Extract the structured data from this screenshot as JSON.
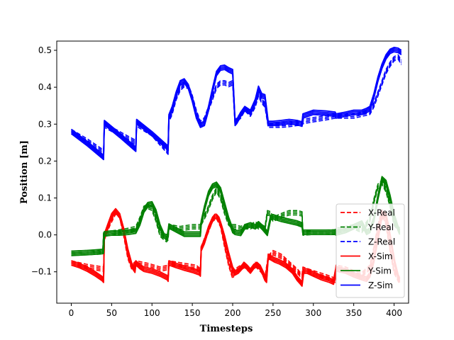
{
  "chart_data": {
    "type": "line",
    "xlabel": "Timesteps",
    "ylabel": "Position [m]",
    "xlim": [
      -18,
      418
    ],
    "ylim": [
      -0.185,
      0.525
    ],
    "xticks": [
      0,
      50,
      100,
      150,
      200,
      250,
      300,
      350,
      400
    ],
    "yticks": [
      -0.1,
      0.0,
      0.1,
      0.2,
      0.3,
      0.4,
      0.5
    ],
    "xtick_labels": [
      "0",
      "50",
      "100",
      "150",
      "200",
      "250",
      "300",
      "350",
      "400"
    ],
    "ytick_labels": [
      "−0.1",
      "0.0",
      "0.1",
      "0.2",
      "0.3",
      "0.4",
      "0.5"
    ],
    "grid": false,
    "legend_position": "lower-right",
    "legend": [
      {
        "label": "X-Real",
        "color": "#ff0000",
        "dash": true
      },
      {
        "label": "Y-Real",
        "color": "#008000",
        "dash": true
      },
      {
        "label": "Z-Real",
        "color": "#0000ff",
        "dash": true
      },
      {
        "label": "X-Sim",
        "color": "#ff0000",
        "dash": false
      },
      {
        "label": "Y-Sim",
        "color": "#008000",
        "dash": false
      },
      {
        "label": "Z-Sim",
        "color": "#0000ff",
        "dash": false
      }
    ],
    "series": [
      {
        "key": "x_real",
        "color": "#ff0000",
        "dash": true,
        "x": [
          0,
          20,
          40,
          41,
          48,
          55,
          60,
          65,
          70,
          75,
          80,
          95,
          100,
          110,
          120,
          121,
          140,
          155,
          160,
          161,
          168,
          175,
          180,
          185,
          190,
          195,
          200,
          203,
          210,
          215,
          222,
          228,
          232,
          236,
          240,
          244,
          248,
          250,
          260,
          270,
          280,
          286,
          287,
          300,
          315,
          327,
          328,
          340,
          350,
          360,
          370,
          375,
          380,
          385,
          390,
          395,
          400,
          407
        ],
        "y": [
          -0.078,
          -0.088,
          -0.095,
          -0.01,
          0.03,
          0.06,
          0.05,
          0.0,
          -0.06,
          -0.09,
          -0.078,
          -0.085,
          -0.088,
          -0.095,
          -0.09,
          -0.078,
          -0.085,
          -0.09,
          -0.1,
          -0.04,
          0.0,
          0.04,
          0.048,
          0.025,
          -0.03,
          -0.08,
          -0.115,
          -0.1,
          -0.09,
          -0.085,
          -0.1,
          -0.082,
          -0.09,
          -0.1,
          -0.12,
          -0.065,
          -0.055,
          -0.05,
          -0.06,
          -0.08,
          -0.1,
          -0.115,
          -0.095,
          -0.105,
          -0.115,
          -0.125,
          -0.09,
          -0.095,
          -0.105,
          -0.11,
          -0.09,
          -0.04,
          0.02,
          0.06,
          0.03,
          -0.04,
          -0.1,
          -0.13
        ]
      },
      {
        "key": "y_real",
        "color": "#008000",
        "dash": true,
        "x": [
          0,
          20,
          39,
          40,
          50,
          60,
          70,
          80,
          85,
          90,
          95,
          100,
          105,
          110,
          115,
          118,
          120,
          121,
          135,
          150,
          160,
          161,
          168,
          175,
          180,
          185,
          190,
          195,
          200,
          203,
          210,
          215,
          222,
          228,
          232,
          236,
          240,
          243,
          247,
          250,
          260,
          270,
          280,
          286,
          287,
          300,
          315,
          327,
          328,
          340,
          350,
          360,
          370,
          375,
          380,
          385,
          390,
          395,
          400,
          407
        ],
        "y": [
          -0.052,
          -0.05,
          -0.048,
          0.0,
          0.003,
          0.006,
          0.01,
          0.015,
          0.04,
          0.07,
          0.075,
          0.07,
          0.04,
          0.0,
          -0.01,
          -0.015,
          -0.01,
          0.02,
          0.015,
          0.02,
          0.02,
          0.03,
          0.06,
          0.1,
          0.12,
          0.1,
          0.06,
          0.03,
          0.02,
          0.02,
          0.015,
          0.02,
          0.02,
          0.028,
          0.02,
          0.02,
          0.015,
          0.058,
          0.055,
          0.04,
          0.05,
          0.058,
          0.058,
          0.055,
          0.003,
          0.005,
          0.005,
          0.006,
          0.01,
          0.015,
          0.02,
          0.01,
          0.04,
          0.09,
          0.13,
          0.14,
          0.12,
          0.08,
          0.03,
          0.01
        ]
      },
      {
        "key": "z_real",
        "color": "#0000ff",
        "dash": true,
        "x": [
          0,
          20,
          40,
          41,
          60,
          80,
          81,
          100,
          120,
          121,
          125,
          130,
          135,
          140,
          145,
          150,
          155,
          160,
          165,
          170,
          175,
          180,
          185,
          190,
          195,
          200,
          203,
          205,
          210,
          215,
          222,
          228,
          232,
          236,
          240,
          244,
          247,
          250,
          260,
          270,
          280,
          286,
          287,
          300,
          315,
          327,
          328,
          340,
          350,
          360,
          370,
          375,
          380,
          385,
          390,
          395,
          400,
          405,
          409
        ],
        "y": [
          0.278,
          0.252,
          0.222,
          0.295,
          0.272,
          0.248,
          0.298,
          0.272,
          0.222,
          0.31,
          0.33,
          0.37,
          0.395,
          0.405,
          0.4,
          0.37,
          0.33,
          0.3,
          0.31,
          0.34,
          0.37,
          0.4,
          0.41,
          0.41,
          0.405,
          0.41,
          0.3,
          0.31,
          0.32,
          0.34,
          0.325,
          0.35,
          0.38,
          0.36,
          0.35,
          0.295,
          0.295,
          0.295,
          0.295,
          0.297,
          0.3,
          0.3,
          0.305,
          0.31,
          0.315,
          0.32,
          0.32,
          0.32,
          0.32,
          0.325,
          0.33,
          0.35,
          0.38,
          0.41,
          0.44,
          0.46,
          0.475,
          0.48,
          0.465
        ]
      },
      {
        "key": "x_sim",
        "color": "#ff0000",
        "dash": false,
        "x": [
          0,
          10,
          20,
          30,
          38,
          40,
          41,
          45,
          50,
          55,
          60,
          65,
          70,
          75,
          79,
          80,
          85,
          90,
          100,
          110,
          119,
          120,
          121,
          130,
          140,
          150,
          159,
          160,
          161,
          165,
          170,
          175,
          178,
          180,
          183,
          186,
          190,
          195,
          200,
          203,
          207,
          212,
          214,
          218,
          222,
          226,
          230,
          234,
          238,
          240,
          242,
          244,
          248,
          252,
          258,
          266,
          274,
          280,
          284,
          286,
          288,
          292,
          300,
          310,
          320,
          325,
          328,
          330,
          340,
          350,
          360,
          366,
          370,
          375,
          380,
          384,
          387,
          390,
          393,
          397,
          401,
          405,
          407
        ],
        "y": [
          -0.078,
          -0.085,
          -0.095,
          -0.108,
          -0.12,
          -0.125,
          -0.005,
          0.02,
          0.05,
          0.063,
          0.05,
          0.01,
          -0.045,
          -0.085,
          -0.098,
          -0.078,
          -0.088,
          -0.095,
          -0.1,
          -0.108,
          -0.118,
          -0.122,
          -0.078,
          -0.085,
          -0.092,
          -0.098,
          -0.105,
          -0.108,
          -0.04,
          -0.02,
          0.015,
          0.04,
          0.048,
          0.048,
          0.04,
          0.02,
          -0.01,
          -0.055,
          -0.095,
          -0.105,
          -0.1,
          -0.088,
          -0.082,
          -0.09,
          -0.1,
          -0.088,
          -0.082,
          -0.09,
          -0.108,
          -0.12,
          -0.125,
          -0.06,
          -0.065,
          -0.07,
          -0.075,
          -0.085,
          -0.1,
          -0.12,
          -0.13,
          -0.135,
          -0.1,
          -0.1,
          -0.108,
          -0.118,
          -0.125,
          -0.13,
          -0.095,
          -0.095,
          -0.1,
          -0.11,
          -0.118,
          -0.122,
          -0.11,
          -0.07,
          -0.01,
          0.04,
          0.055,
          0.05,
          0.02,
          -0.03,
          -0.08,
          -0.115,
          -0.125
        ]
      },
      {
        "key": "y_sim",
        "color": "#008000",
        "dash": false,
        "x": [
          0,
          20,
          39,
          40,
          41,
          50,
          60,
          70,
          80,
          85,
          90,
          95,
          100,
          105,
          110,
          115,
          119,
          120,
          121,
          140,
          160,
          161,
          165,
          170,
          175,
          180,
          185,
          190,
          195,
          200,
          203,
          210,
          215,
          222,
          228,
          232,
          236,
          240,
          243,
          247,
          250,
          260,
          270,
          280,
          286,
          287,
          300,
          315,
          327,
          328,
          340,
          350,
          360,
          366,
          370,
          375,
          380,
          385,
          390,
          395,
          400,
          405,
          407
        ],
        "y": [
          -0.052,
          -0.05,
          -0.047,
          -0.046,
          0.001,
          0.003,
          0.003,
          0.005,
          0.008,
          0.03,
          0.065,
          0.08,
          0.082,
          0.06,
          0.02,
          -0.005,
          -0.008,
          0.005,
          0.022,
          0.0,
          0.0,
          0.03,
          0.07,
          0.11,
          0.13,
          0.135,
          0.12,
          0.08,
          0.04,
          0.01,
          0.005,
          0.002,
          0.02,
          0.025,
          0.02,
          0.028,
          0.02,
          0.01,
          0.002,
          0.045,
          0.047,
          0.04,
          0.035,
          0.03,
          0.025,
          0.005,
          0.005,
          0.005,
          0.005,
          0.003,
          0.01,
          0.02,
          0.03,
          0.005,
          0.01,
          0.04,
          0.1,
          0.15,
          0.14,
          0.1,
          0.05,
          0.015,
          0.005
        ]
      },
      {
        "key": "z_sim",
        "color": "#0000ff",
        "dash": false,
        "x": [
          0,
          20,
          39,
          40,
          41,
          60,
          79,
          80,
          81,
          100,
          119,
          120,
          121,
          125,
          130,
          135,
          140,
          145,
          150,
          155,
          160,
          165,
          170,
          175,
          180,
          185,
          190,
          195,
          200,
          203,
          205,
          210,
          215,
          222,
          228,
          232,
          236,
          240,
          244,
          247,
          250,
          260,
          270,
          280,
          286,
          287,
          300,
          315,
          327,
          328,
          340,
          350,
          360,
          366,
          370,
          375,
          380,
          385,
          390,
          395,
          400,
          405,
          409
        ],
        "y": [
          0.278,
          0.245,
          0.21,
          0.208,
          0.302,
          0.268,
          0.232,
          0.23,
          0.305,
          0.272,
          0.235,
          0.232,
          0.318,
          0.34,
          0.38,
          0.41,
          0.415,
          0.4,
          0.365,
          0.32,
          0.295,
          0.3,
          0.34,
          0.39,
          0.435,
          0.45,
          0.452,
          0.445,
          0.44,
          0.3,
          0.305,
          0.325,
          0.34,
          0.33,
          0.36,
          0.395,
          0.375,
          0.372,
          0.3,
          0.3,
          0.3,
          0.302,
          0.305,
          0.302,
          0.298,
          0.32,
          0.33,
          0.328,
          0.325,
          0.32,
          0.325,
          0.33,
          0.33,
          0.335,
          0.34,
          0.375,
          0.42,
          0.455,
          0.48,
          0.495,
          0.5,
          0.498,
          0.492
        ]
      }
    ]
  }
}
